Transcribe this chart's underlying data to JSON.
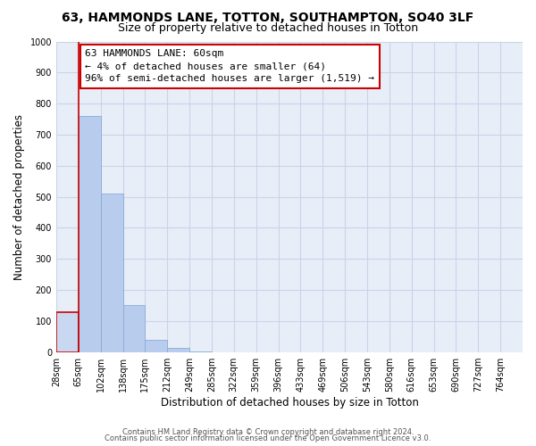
{
  "title": "63, HAMMONDS LANE, TOTTON, SOUTHAMPTON, SO40 3LF",
  "subtitle": "Size of property relative to detached houses in Totton",
  "xlabel": "Distribution of detached houses by size in Totton",
  "ylabel": "Number of detached properties",
  "bar_labels": [
    "28sqm",
    "65sqm",
    "102sqm",
    "138sqm",
    "175sqm",
    "212sqm",
    "249sqm",
    "285sqm",
    "322sqm",
    "359sqm",
    "396sqm",
    "433sqm",
    "469sqm",
    "506sqm",
    "543sqm",
    "580sqm",
    "616sqm",
    "653sqm",
    "690sqm",
    "727sqm",
    "764sqm"
  ],
  "bar_values": [
    128,
    760,
    510,
    150,
    40,
    12,
    3,
    0,
    0,
    0,
    0,
    0,
    0,
    0,
    0,
    0,
    0,
    0,
    0,
    0,
    0
  ],
  "highlight_bar_index": 0,
  "highlight_color": "#c8d8f0",
  "normal_color": "#b8ccee",
  "highlight_edge_color": "#cc0000",
  "normal_edge_color": "#8aaad8",
  "ylim": [
    0,
    1000
  ],
  "yticks": [
    0,
    100,
    200,
    300,
    400,
    500,
    600,
    700,
    800,
    900,
    1000
  ],
  "annotation_title": "63 HAMMONDS LANE: 60sqm",
  "annotation_line1": "← 4% of detached houses are smaller (64)",
  "annotation_line2": "96% of semi-detached houses are larger (1,519) →",
  "footer1": "Contains HM Land Registry data © Crown copyright and database right 2024.",
  "footer2": "Contains public sector information licensed under the Open Government Licence v3.0.",
  "bg_color": "#ffffff",
  "plot_bg_color": "#e8eef8",
  "grid_color": "#c8d4e8",
  "title_fontsize": 10,
  "subtitle_fontsize": 9,
  "axis_label_fontsize": 8.5,
  "tick_fontsize": 7,
  "annotation_fontsize": 8,
  "footer_fontsize": 6
}
